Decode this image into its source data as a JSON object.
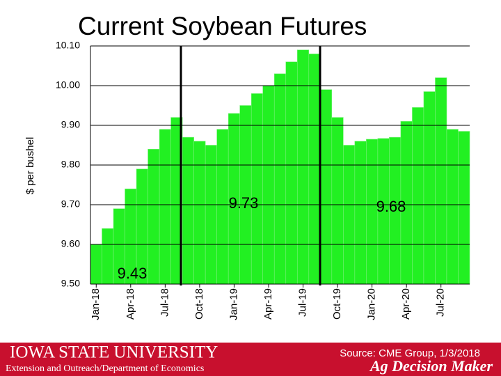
{
  "chart_data": {
    "type": "bar",
    "title": "Current Soybean Futures",
    "y_label": "$ per bushel",
    "categories": [
      "Jan-18",
      null,
      null,
      "Apr-18",
      null,
      null,
      "Jul-18",
      null,
      null,
      "Oct-18",
      null,
      null,
      "Jan-19",
      null,
      null,
      "Apr-19",
      null,
      null,
      "Jul-19",
      null,
      null,
      "Oct-19",
      null,
      null,
      "Jan-20",
      null,
      null,
      "Apr-20",
      null,
      null,
      "Jul-20",
      null,
      null
    ],
    "values": [
      9.6,
      9.64,
      9.69,
      9.74,
      9.79,
      9.84,
      9.89,
      9.92,
      9.87,
      9.86,
      9.85,
      9.89,
      9.93,
      9.95,
      9.98,
      10.0,
      10.03,
      10.06,
      10.09,
      10.08,
      9.99,
      9.92,
      9.85,
      9.86,
      9.865,
      9.867,
      9.87,
      9.91,
      9.945,
      9.985,
      10.02,
      9.89,
      9.885
    ],
    "color": "#22f022",
    "ylim": [
      9.5,
      10.1
    ],
    "yticks": [
      {
        "value": 9.5,
        "label": "9.50"
      },
      {
        "value": 9.6,
        "label": "9.60"
      },
      {
        "value": 9.7,
        "label": "9.70"
      },
      {
        "value": 9.8,
        "label": "9.80"
      },
      {
        "value": 9.9,
        "label": "9.90"
      },
      {
        "value": 10.0,
        "label": "10.00"
      },
      {
        "value": 10.1,
        "label": "10.10"
      }
    ],
    "grid": true,
    "annotations": [
      "9.43",
      "9.73",
      "9.68"
    ]
  },
  "footer": {
    "university": "IOWA STATE UNIVERSITY",
    "department": "Extension and Outreach/Department of Economics",
    "source": "Source: CME Group, 1/3/2018",
    "brand": "Ag Decision Maker"
  }
}
